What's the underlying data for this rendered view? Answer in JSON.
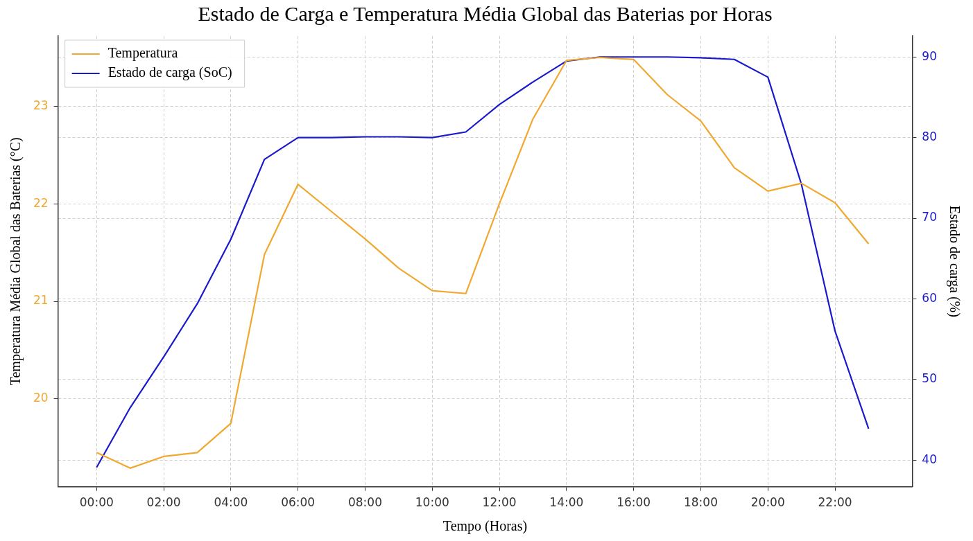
{
  "chart_data": {
    "type": "line",
    "title": "Estado de Carga e Temperatura Média Global das Baterias por Horas",
    "xlabel": "Tempo (Horas)",
    "ylabel": "Temperatura Média Global das Baterias (°C)",
    "y2label": "Estado de carga (%)",
    "x": [
      0,
      1,
      2,
      3,
      4,
      5,
      6,
      7,
      8,
      9,
      10,
      11,
      12,
      13,
      14,
      15,
      16,
      17,
      18,
      19,
      20,
      21,
      22,
      23
    ],
    "xlim": [
      -1.15,
      24.3
    ],
    "xticks": [
      {
        "value": 0,
        "label": "00:00"
      },
      {
        "value": 2,
        "label": "02:00"
      },
      {
        "value": 4,
        "label": "04:00"
      },
      {
        "value": 6,
        "label": "06:00"
      },
      {
        "value": 8,
        "label": "08:00"
      },
      {
        "value": 10,
        "label": "10:00"
      },
      {
        "value": 12,
        "label": "12:00"
      },
      {
        "value": 14,
        "label": "14:00"
      },
      {
        "value": 16,
        "label": "16:00"
      },
      {
        "value": 18,
        "label": "18:00"
      },
      {
        "value": 20,
        "label": "20:00"
      },
      {
        "value": 22,
        "label": "22:00"
      }
    ],
    "ylim": [
      19.1,
      23.72
    ],
    "yticks": [
      20,
      21,
      22,
      23
    ],
    "y2lim": [
      36.7,
      92.6
    ],
    "y2ticks": [
      40,
      50,
      60,
      70,
      80,
      90
    ],
    "series": [
      {
        "name": "Temperatura",
        "color": "#f0a830",
        "values": [
          19.45,
          19.29,
          19.41,
          19.45,
          19.75,
          21.48,
          22.2,
          21.92,
          21.64,
          21.34,
          21.11,
          21.08,
          22.0,
          22.87,
          23.47,
          23.5,
          23.48,
          23.12,
          22.85,
          22.37,
          22.13,
          22.21,
          22.01,
          21.59
        ]
      },
      {
        "name": "Estado de carga (SoC)",
        "color": "#1a1acc",
        "axis": "y2",
        "values": [
          39.1,
          46.5,
          52.8,
          59.4,
          67.4,
          77.3,
          80.0,
          80.0,
          80.1,
          80.1,
          80.0,
          80.7,
          84.1,
          86.9,
          89.5,
          90.0,
          90.0,
          90.0,
          89.9,
          89.7,
          87.5,
          74.2,
          56.0,
          43.9
        ]
      }
    ],
    "grid": true,
    "legend": "top left",
    "marker": "none",
    "line_style": "solid"
  }
}
